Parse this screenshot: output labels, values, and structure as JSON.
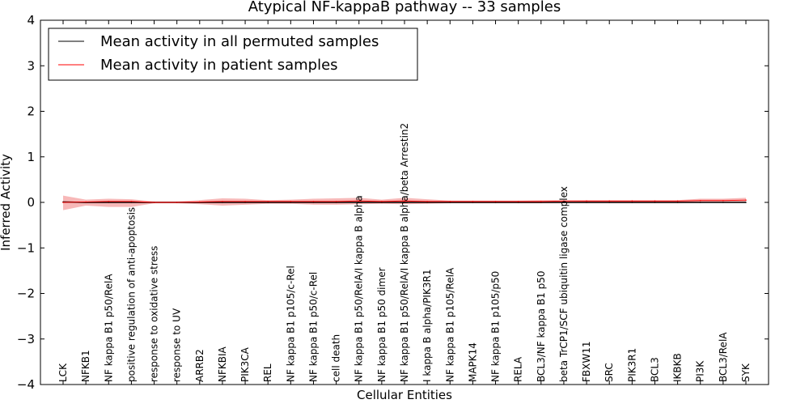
{
  "chart_data": {
    "type": "line",
    "title": "Atypical NF-kappaB pathway -- 33 samples",
    "xlabel": "Cellular Entities",
    "ylabel": "Inferred Activity",
    "ylim": [
      -4,
      4
    ],
    "yticks": [
      -4,
      -3,
      -2,
      -1,
      0,
      1,
      2,
      3,
      4
    ],
    "ytick_labels": [
      "−4",
      "−3",
      "−2",
      "−1",
      "0",
      "1",
      "2",
      "3",
      "4"
    ],
    "grid": false,
    "legend": {
      "placement": "top-left"
    },
    "categories": [
      "LCK",
      "NFKB1",
      "NF kappa B1 p50/RelA",
      "positive regulation of anti-apoptosis",
      "response to oxidative stress",
      "response to UV",
      "ARRB2",
      "NFKBIA",
      "PIK3CA",
      "REL",
      "NF kappa B1 p105/c-Rel",
      "NF kappa B1 p50/c-Rel",
      "cell death",
      "NF kappa B1 p50/RelA/I kappa B alpha",
      "NF kappa B1 p50 dimer",
      "NF kappa B1 p50/RelA/I kappa B alpha/beta Arrestin2",
      "I kappa B alpha/PIK3R1",
      "NF kappa B1 p105/RelA",
      "MAPK14",
      "NF kappa B1 p105/p50",
      "RELA",
      "BCL3/NF kappa B1 p50",
      "beta TrCP1/SCF ubiquitin ligase complex",
      "FBXW11",
      "SRC",
      "PIK3R1",
      "BCL3",
      "IKBKB",
      "PI3K",
      "BCL3/RelA",
      "SYK"
    ],
    "series": [
      {
        "name": "Mean activity in all permuted samples",
        "color": "#000000",
        "values": [
          0.01,
          0.0,
          0.0,
          0.0,
          0.0,
          0.0,
          0.0,
          0.0,
          0.0,
          0.0,
          0.0,
          0.0,
          0.0,
          0.0,
          0.0,
          0.0,
          0.0,
          0.0,
          0.0,
          0.0,
          0.0,
          0.0,
          0.0,
          0.0,
          0.0,
          0.0,
          0.0,
          0.0,
          0.0,
          0.0,
          0.0
        ],
        "band_low": [
          -0.03,
          -0.02,
          -0.02,
          -0.02,
          -0.02,
          -0.02,
          -0.02,
          -0.02,
          -0.02,
          -0.02,
          -0.02,
          -0.02,
          -0.02,
          -0.02,
          -0.02,
          -0.02,
          -0.02,
          -0.02,
          -0.02,
          -0.02,
          -0.02,
          -0.02,
          -0.02,
          -0.02,
          -0.02,
          -0.02,
          -0.02,
          -0.02,
          -0.02,
          -0.02,
          -0.02
        ],
        "band_high": [
          0.03,
          0.02,
          0.02,
          0.02,
          0.02,
          0.02,
          0.02,
          0.02,
          0.02,
          0.02,
          0.02,
          0.02,
          0.02,
          0.02,
          0.02,
          0.02,
          0.02,
          0.02,
          0.02,
          0.02,
          0.02,
          0.02,
          0.02,
          0.02,
          0.02,
          0.02,
          0.02,
          0.02,
          0.02,
          0.02,
          0.02
        ]
      },
      {
        "name": "Mean activity in patient samples",
        "color": "#ff0000",
        "band_color": "#f4a0a0",
        "values": [
          0.0,
          0.01,
          0.02,
          0.02,
          0.0,
          0.0,
          0.01,
          0.02,
          0.02,
          0.02,
          0.02,
          0.02,
          0.02,
          0.03,
          0.02,
          0.03,
          0.02,
          0.02,
          0.02,
          0.02,
          0.02,
          0.02,
          0.03,
          0.03,
          0.03,
          0.03,
          0.03,
          0.03,
          0.04,
          0.04,
          0.05
        ],
        "band_low": [
          -0.17,
          -0.07,
          -0.1,
          -0.1,
          -0.02,
          -0.02,
          -0.04,
          -0.07,
          -0.05,
          -0.03,
          -0.03,
          -0.05,
          -0.05,
          -0.04,
          -0.03,
          -0.04,
          -0.03,
          -0.02,
          -0.02,
          -0.02,
          -0.02,
          -0.02,
          -0.02,
          -0.02,
          -0.02,
          -0.02,
          -0.02,
          -0.02,
          -0.01,
          0.0,
          0.01
        ],
        "band_high": [
          0.15,
          0.06,
          0.08,
          0.07,
          0.02,
          0.02,
          0.05,
          0.09,
          0.08,
          0.05,
          0.06,
          0.08,
          0.09,
          0.1,
          0.06,
          0.1,
          0.07,
          0.04,
          0.04,
          0.04,
          0.04,
          0.05,
          0.05,
          0.05,
          0.05,
          0.05,
          0.05,
          0.05,
          0.08,
          0.08,
          0.1
        ]
      }
    ]
  }
}
